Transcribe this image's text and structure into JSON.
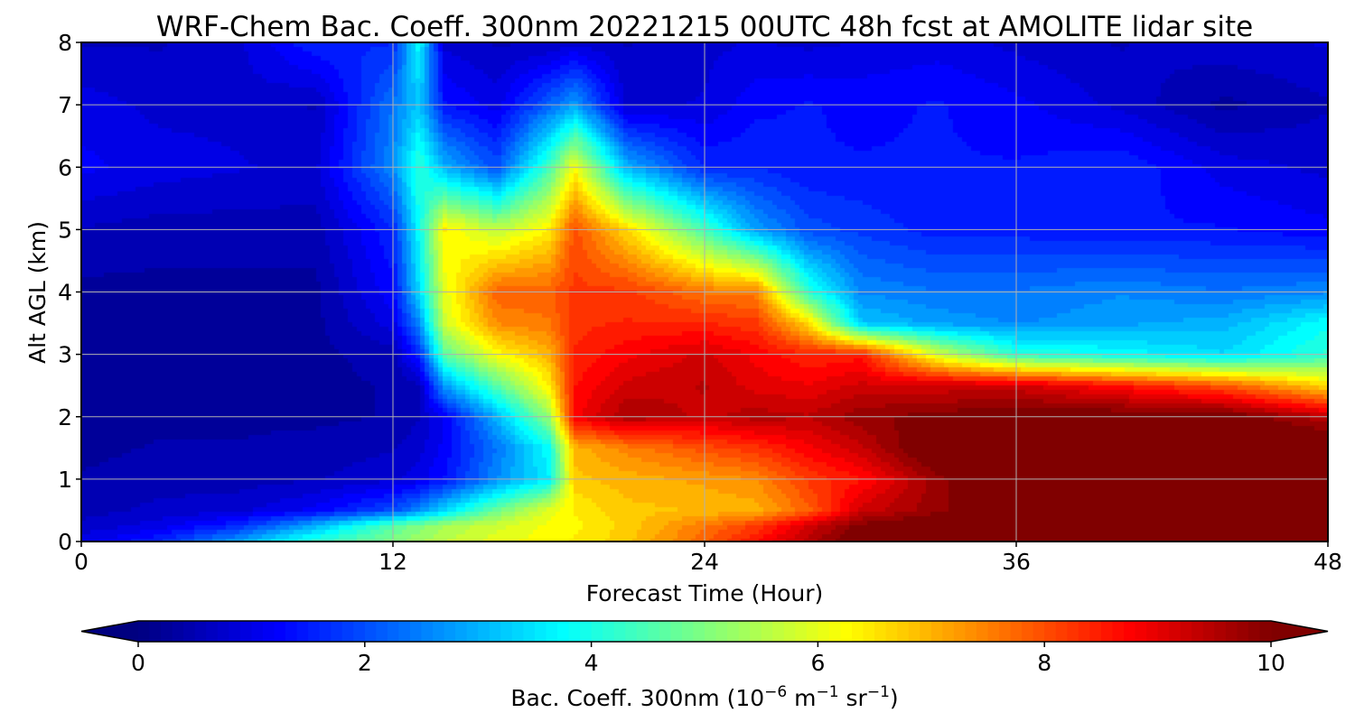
{
  "chart_data": {
    "type": "heatmap",
    "title": "WRF-Chem Bac. Coeff. 300nm  20221215 00UTC 48h fcst at AMOLITE lidar site",
    "xlabel": "Forecast Time (Hour)",
    "ylabel": "Alt AGL (km)",
    "xlim": [
      0,
      48
    ],
    "ylim": [
      0,
      8
    ],
    "x_ticks": [
      0,
      12,
      24,
      36,
      48
    ],
    "x_tick_labels": [
      "0",
      "12",
      "24",
      "36",
      "48"
    ],
    "y_ticks": [
      0,
      1,
      2,
      3,
      4,
      5,
      6,
      7,
      8
    ],
    "y_tick_labels": [
      "0",
      "1",
      "2",
      "3",
      "4",
      "5",
      "6",
      "7",
      "8"
    ],
    "grid": true,
    "colormap": "jet",
    "x": [
      0,
      3,
      6,
      9,
      12,
      13,
      14,
      16,
      18,
      19,
      21,
      24,
      26,
      28,
      30,
      33,
      36,
      40,
      44,
      48
    ],
    "y": [
      0,
      0.25,
      0.5,
      1,
      1.5,
      2,
      2.5,
      3,
      3.5,
      4,
      5,
      6,
      7,
      8
    ],
    "values": [
      [
        1.0,
        1.6,
        2.8,
        4.2,
        5.0,
        5.3,
        5.6,
        6.0,
        6.3,
        6.4,
        6.8,
        7.8,
        8.6,
        9.5,
        10.2,
        10.5,
        10.5,
        10.5,
        10.5,
        10.5
      ],
      [
        0.7,
        1.0,
        1.6,
        3.0,
        4.6,
        5.0,
        5.4,
        5.8,
        6.2,
        6.3,
        6.7,
        7.6,
        8.2,
        9.2,
        10.0,
        10.3,
        10.5,
        10.5,
        10.5,
        10.5
      ],
      [
        0.5,
        0.7,
        0.8,
        1.2,
        2.0,
        2.6,
        3.4,
        4.8,
        6.0,
        6.4,
        6.8,
        6.9,
        7.0,
        7.8,
        9.2,
        9.8,
        10.5,
        10.5,
        10.5,
        10.5
      ],
      [
        0.4,
        0.5,
        0.5,
        0.6,
        0.8,
        1.0,
        1.4,
        2.6,
        3.6,
        6.8,
        7.0,
        7.2,
        7.4,
        8.2,
        8.6,
        9.8,
        10.5,
        10.5,
        10.5,
        10.5
      ],
      [
        0.3,
        0.4,
        0.4,
        0.5,
        0.6,
        0.8,
        1.2,
        2.4,
        3.8,
        7.0,
        7.5,
        8.0,
        8.3,
        8.8,
        9.3,
        10.5,
        10.5,
        10.5,
        10.5,
        10.5
      ],
      [
        0.3,
        0.3,
        0.3,
        0.3,
        0.4,
        0.6,
        1.2,
        3.0,
        5.2,
        8.8,
        9.6,
        9.3,
        9.5,
        9.4,
        9.8,
        10.0,
        10.2,
        10.2,
        10.2,
        9.4
      ],
      [
        0.3,
        0.3,
        0.3,
        0.3,
        0.4,
        0.6,
        2.8,
        4.6,
        6.4,
        8.6,
        9.2,
        9.4,
        9.0,
        8.9,
        9.2,
        9.2,
        9.2,
        8.6,
        7.9,
        6.6
      ],
      [
        0.3,
        0.3,
        0.3,
        0.3,
        0.5,
        1.6,
        4.6,
        6.2,
        7.0,
        8.4,
        8.8,
        9.2,
        8.8,
        8.4,
        8.5,
        5.8,
        4.2,
        3.8,
        3.4,
        4.2
      ],
      [
        0.3,
        0.3,
        0.3,
        0.3,
        1.0,
        2.6,
        5.8,
        7.4,
        7.6,
        8.3,
        8.4,
        8.4,
        8.2,
        6.6,
        3.2,
        2.8,
        2.6,
        2.8,
        3.0,
        3.8
      ],
      [
        0.3,
        0.3,
        0.3,
        0.3,
        1.3,
        3.4,
        6.0,
        7.8,
        7.8,
        8.2,
        8.2,
        7.6,
        7.5,
        4.2,
        2.6,
        2.4,
        2.4,
        2.6,
        2.4,
        2.6
      ],
      [
        0.6,
        0.5,
        0.5,
        0.5,
        1.6,
        3.8,
        6.4,
        5.6,
        6.4,
        8.0,
        6.6,
        4.4,
        2.8,
        2.0,
        1.8,
        1.5,
        1.5,
        1.4,
        1.4,
        1.2
      ],
      [
        1.2,
        1.0,
        0.9,
        0.8,
        2.6,
        4.2,
        3.0,
        2.0,
        4.4,
        6.2,
        3.0,
        1.6,
        1.6,
        1.4,
        1.4,
        1.4,
        1.4,
        1.6,
        1.0,
        0.8
      ],
      [
        1.0,
        0.8,
        0.8,
        0.6,
        2.4,
        3.2,
        1.4,
        1.0,
        2.2,
        2.8,
        0.8,
        0.9,
        1.3,
        1.4,
        1.3,
        1.4,
        1.2,
        0.8,
        0.3,
        0.6
      ],
      [
        0.6,
        0.6,
        0.8,
        1.6,
        1.6,
        3.8,
        0.8,
        0.6,
        0.6,
        0.8,
        0.6,
        0.8,
        0.9,
        0.8,
        0.9,
        1.0,
        0.8,
        0.6,
        0.8,
        0.9
      ]
    ],
    "colorbar": {
      "label_main": "Bac. Coeff. 300nm  (10",
      "label_exp1": "−6",
      "label_mid": " m",
      "label_exp2": "−1",
      "label_mid2": " sr",
      "label_exp3": "−1",
      "label_end": ")",
      "min": 0,
      "max": 10,
      "ticks": [
        0,
        2,
        4,
        6,
        8,
        10
      ],
      "tick_labels": [
        "0",
        "2",
        "4",
        "6",
        "8",
        "10"
      ],
      "extend": "both"
    }
  }
}
